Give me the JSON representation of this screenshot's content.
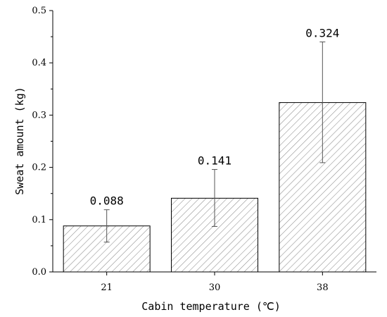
{
  "chart_data": {
    "type": "bar",
    "categories": [
      "21",
      "30",
      "38"
    ],
    "values": [
      0.088,
      0.141,
      0.324
    ],
    "error_bars": [
      {
        "low": 0.057,
        "high": 0.119
      },
      {
        "low": 0.087,
        "high": 0.196
      },
      {
        "low": 0.209,
        "high": 0.44
      }
    ],
    "data_labels": [
      "0.088",
      "0.141",
      "0.324"
    ],
    "xlabel": "Cabin  temperature (℃)",
    "ylabel": "Sweat amount (kg)",
    "ylim": [
      0,
      0.5
    ],
    "yticks": [
      0.0,
      0.1,
      0.2,
      0.3,
      0.4,
      0.5
    ],
    "ytick_labels": [
      "0.0",
      "0.1",
      "0.2",
      "0.3",
      "0.4",
      "0.5"
    ],
    "grid": false,
    "bar_fill": "hatched",
    "colors": {
      "bar_edge": "#000000",
      "hatch": "#8c8c8c",
      "axis": "#000000",
      "error_bar": "#555555"
    }
  }
}
